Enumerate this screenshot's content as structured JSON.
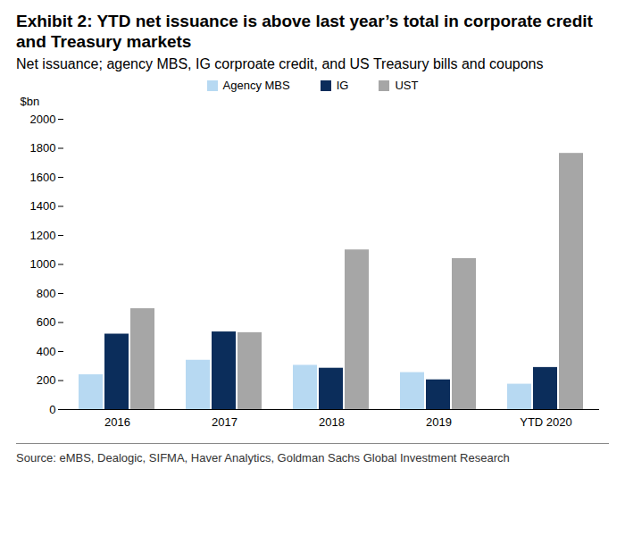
{
  "chart_data": {
    "type": "bar",
    "title": "Exhibit 2: YTD net issuance is above last year’s total in corporate credit and Treasury markets",
    "subtitle": "Net issuance; agency MBS, IG corproate credit, and US Treasury bills and coupons",
    "y_label": "$bn",
    "caption": "Source: eMBS, Dealogic, SIFMA, Haver Analytics, Goldman Sachs Global Investment Research",
    "categories": [
      "2016",
      "2017",
      "2018",
      "2019",
      "YTD 2020"
    ],
    "series": [
      {
        "name": "Agency MBS",
        "color": "#b7d9f2",
        "values": [
          240,
          340,
          305,
          255,
          175
        ]
      },
      {
        "name": "IG",
        "color": "#0b2d5b",
        "values": [
          520,
          535,
          285,
          205,
          290
        ]
      },
      {
        "name": "UST",
        "color": "#a6a6a6",
        "values": [
          695,
          530,
          1100,
          1040,
          1765
        ]
      }
    ],
    "ylim": [
      0,
      2000
    ],
    "yticks": [
      0,
      200,
      400,
      600,
      800,
      1000,
      1200,
      1400,
      1600,
      1800,
      2000
    ],
    "grid": false,
    "legend": "top"
  }
}
